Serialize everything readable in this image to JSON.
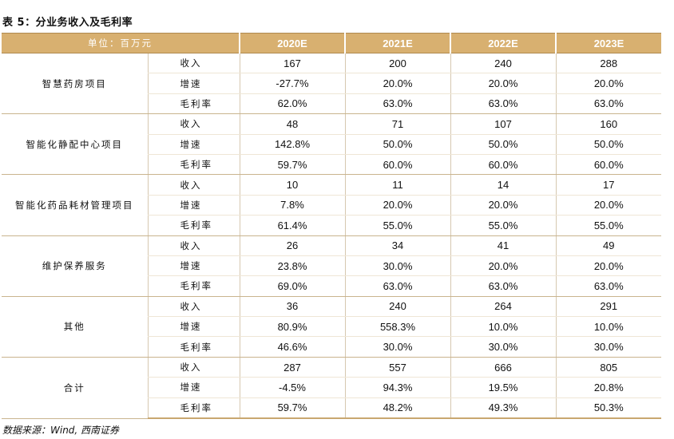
{
  "title": "表 5：分业务收入及毛利率",
  "header": {
    "unit_label": "单位：百万元",
    "years": [
      "2020E",
      "2021E",
      "2022E",
      "2023E"
    ]
  },
  "groups": [
    {
      "name": "智慧药房项目",
      "rows": [
        {
          "metric": "收入",
          "values": [
            "167",
            "200",
            "240",
            "288"
          ]
        },
        {
          "metric": "增速",
          "values": [
            "-27.7%",
            "20.0%",
            "20.0%",
            "20.0%"
          ]
        },
        {
          "metric": "毛利率",
          "values": [
            "62.0%",
            "63.0%",
            "63.0%",
            "63.0%"
          ]
        }
      ]
    },
    {
      "name": "智能化静配中心项目",
      "rows": [
        {
          "metric": "收入",
          "values": [
            "48",
            "71",
            "107",
            "160"
          ]
        },
        {
          "metric": "增速",
          "values": [
            "142.8%",
            "50.0%",
            "50.0%",
            "50.0%"
          ]
        },
        {
          "metric": "毛利率",
          "values": [
            "59.7%",
            "60.0%",
            "60.0%",
            "60.0%"
          ]
        }
      ]
    },
    {
      "name": "智能化药品耗材管理项目",
      "rows": [
        {
          "metric": "收入",
          "values": [
            "10",
            "11",
            "14",
            "17"
          ]
        },
        {
          "metric": "增速",
          "values": [
            "7.8%",
            "20.0%",
            "20.0%",
            "20.0%"
          ]
        },
        {
          "metric": "毛利率",
          "values": [
            "61.4%",
            "55.0%",
            "55.0%",
            "55.0%"
          ]
        }
      ]
    },
    {
      "name": "维护保养服务",
      "rows": [
        {
          "metric": "收入",
          "values": [
            "26",
            "34",
            "41",
            "49"
          ]
        },
        {
          "metric": "增速",
          "values": [
            "23.8%",
            "30.0%",
            "20.0%",
            "20.0%"
          ]
        },
        {
          "metric": "毛利率",
          "values": [
            "69.0%",
            "63.0%",
            "63.0%",
            "63.0%"
          ]
        }
      ]
    },
    {
      "name": "其他",
      "rows": [
        {
          "metric": "收入",
          "values": [
            "36",
            "240",
            "264",
            "291"
          ]
        },
        {
          "metric": "增速",
          "values": [
            "80.9%",
            "558.3%",
            "10.0%",
            "10.0%"
          ]
        },
        {
          "metric": "毛利率",
          "values": [
            "46.6%",
            "30.0%",
            "30.0%",
            "30.0%"
          ]
        }
      ]
    },
    {
      "name": "合计",
      "rows": [
        {
          "metric": "收入",
          "values": [
            "287",
            "557",
            "666",
            "805"
          ]
        },
        {
          "metric": "增速",
          "values": [
            "-4.5%",
            "94.3%",
            "19.5%",
            "20.8%"
          ]
        },
        {
          "metric": "毛利率",
          "values": [
            "59.7%",
            "48.2%",
            "49.3%",
            "50.3%"
          ]
        }
      ]
    }
  ],
  "source": "数据来源：Wind, 西南证券",
  "colors": {
    "header_bg": "#d8b070",
    "border": "#c9b48e"
  }
}
